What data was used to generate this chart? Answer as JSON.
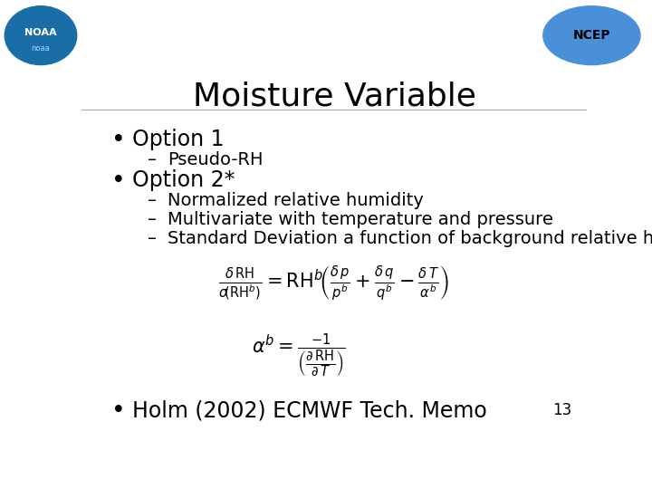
{
  "title": "Moisture Variable",
  "title_fontsize": 26,
  "title_font": "Times New Roman",
  "background_color": "#ffffff",
  "text_color": "#000000",
  "bullet1": "Option 1",
  "sub1": "Pseudo-RH",
  "bullet2": "Option 2*",
  "sub2a": "Normalized relative humidity",
  "sub2b": "Multivariate with temperature and pressure",
  "sub2c": "Standard Deviation a function of background relative humidity",
  "bullet3": "Holm (2002) ECMWF Tech. Memo",
  "page_num": "13",
  "bullet_fontsize": 17,
  "sub_fontsize": 14,
  "formula_fontsize": 15,
  "page_fontsize": 12
}
